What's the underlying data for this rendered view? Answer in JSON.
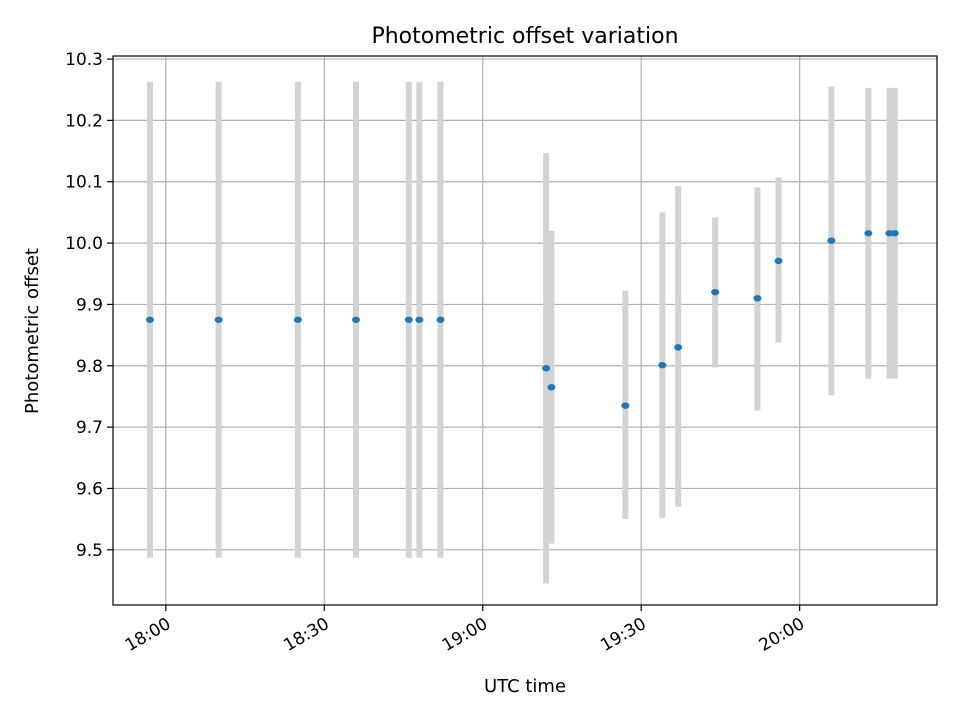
{
  "chart_data": {
    "type": "scatter",
    "title": "Photometric offset variation",
    "xlabel": "UTC time",
    "ylabel": "Photometric offset",
    "x_unit": "HH:MM UTC",
    "xlim": [
      "17:50",
      "20:26"
    ],
    "ylim": [
      9.41,
      10.305
    ],
    "xticks": [
      "18:00",
      "18:30",
      "19:00",
      "19:30",
      "20:00"
    ],
    "yticks": [
      "9.5",
      "9.6",
      "9.7",
      "9.8",
      "9.9",
      "10.0",
      "10.1",
      "10.2",
      "10.3"
    ],
    "grid": true,
    "point_color": "#1f77b4",
    "errorbar_color": "#d3d3d3",
    "points": [
      {
        "x": "17:57",
        "y": 9.875,
        "ylow": 9.487,
        "yhigh": 10.263
      },
      {
        "x": "18:10",
        "y": 9.875,
        "ylow": 9.487,
        "yhigh": 10.263
      },
      {
        "x": "18:25",
        "y": 9.875,
        "ylow": 9.487,
        "yhigh": 10.263
      },
      {
        "x": "18:36",
        "y": 9.875,
        "ylow": 9.487,
        "yhigh": 10.263
      },
      {
        "x": "18:46",
        "y": 9.875,
        "ylow": 9.487,
        "yhigh": 10.263
      },
      {
        "x": "18:48",
        "y": 9.875,
        "ylow": 9.487,
        "yhigh": 10.263
      },
      {
        "x": "18:52",
        "y": 9.875,
        "ylow": 9.487,
        "yhigh": 10.263
      },
      {
        "x": "19:12",
        "y": 9.796,
        "ylow": 9.445,
        "yhigh": 10.147
      },
      {
        "x": "19:13",
        "y": 9.765,
        "ylow": 9.51,
        "yhigh": 10.02
      },
      {
        "x": "19:27",
        "y": 9.735,
        "ylow": 9.55,
        "yhigh": 9.922
      },
      {
        "x": "19:34",
        "y": 9.801,
        "ylow": 9.552,
        "yhigh": 10.05
      },
      {
        "x": "19:37",
        "y": 9.83,
        "ylow": 9.57,
        "yhigh": 10.093
      },
      {
        "x": "19:44",
        "y": 9.92,
        "ylow": 9.797,
        "yhigh": 10.042
      },
      {
        "x": "19:52",
        "y": 9.91,
        "ylow": 9.727,
        "yhigh": 10.091
      },
      {
        "x": "19:56",
        "y": 9.971,
        "ylow": 9.838,
        "yhigh": 10.107
      },
      {
        "x": "20:06",
        "y": 10.004,
        "ylow": 9.752,
        "yhigh": 10.255
      },
      {
        "x": "20:13",
        "y": 10.016,
        "ylow": 9.779,
        "yhigh": 10.253
      },
      {
        "x": "20:17",
        "y": 10.016,
        "ylow": 9.779,
        "yhigh": 10.253
      },
      {
        "x": "20:18",
        "y": 10.016,
        "ylow": 9.779,
        "yhigh": 10.253
      }
    ]
  }
}
